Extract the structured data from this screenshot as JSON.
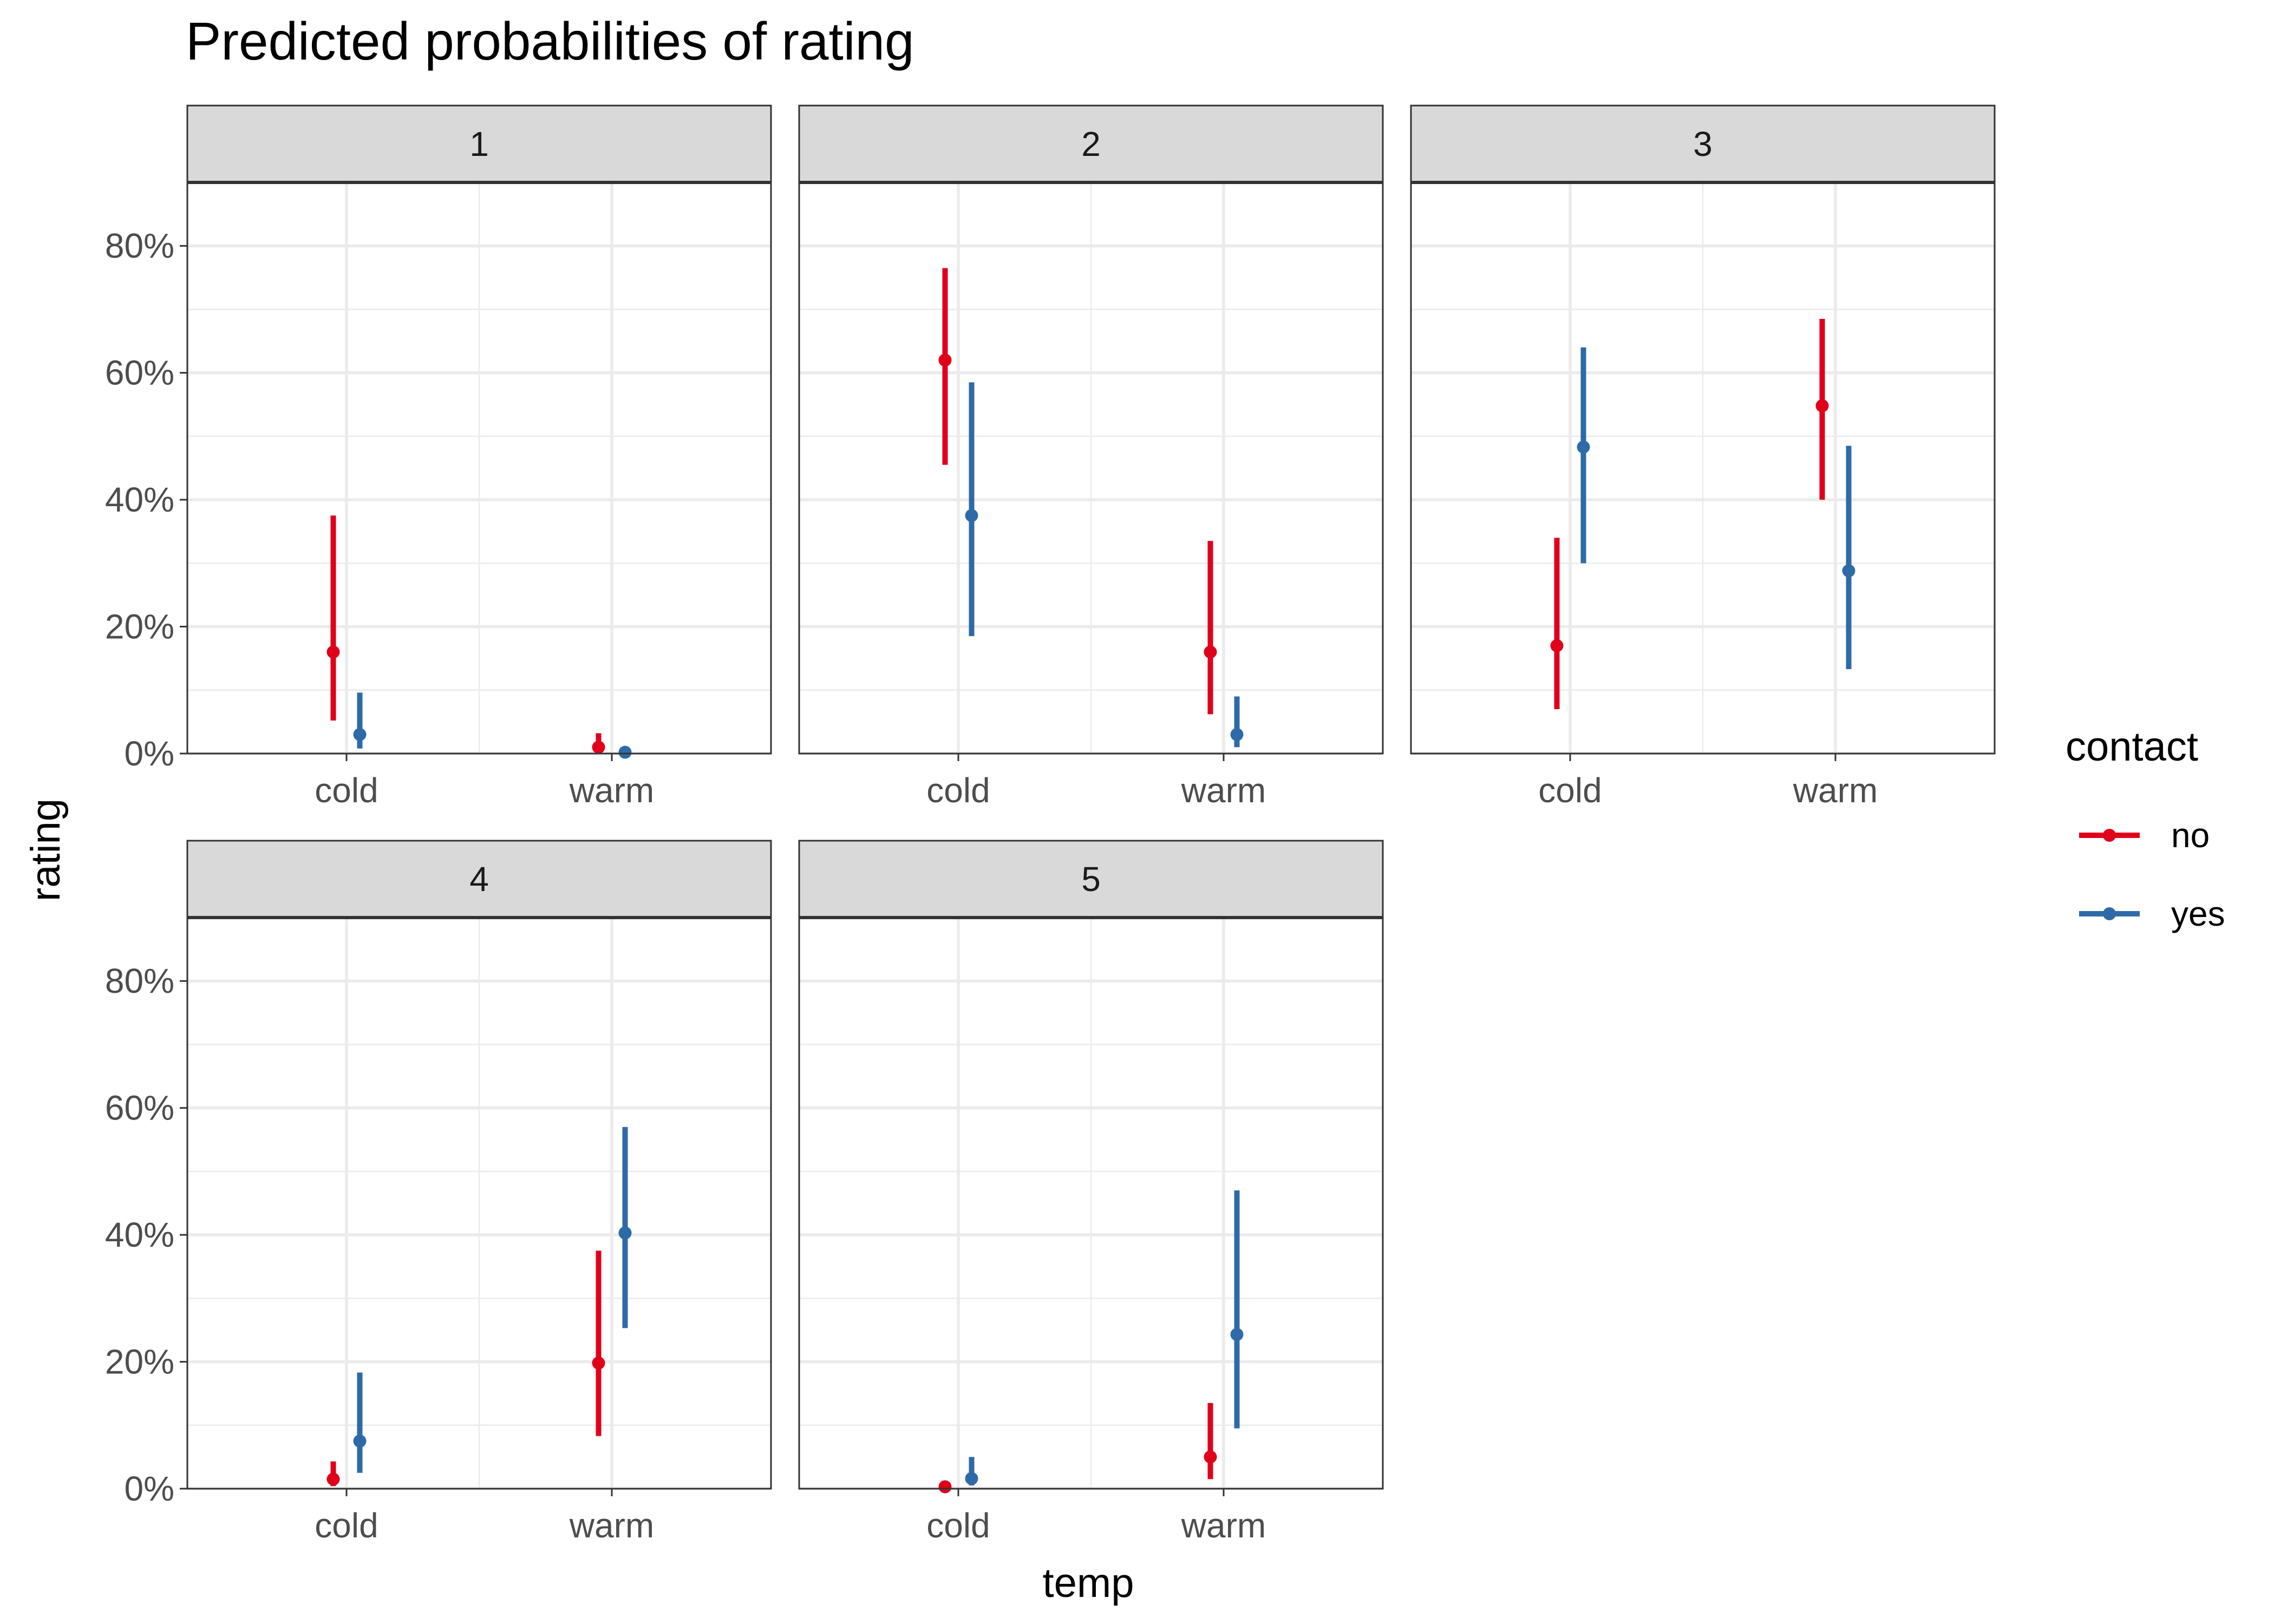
{
  "chart_data": {
    "type": "pointrange",
    "title": "Predicted probabilities of rating",
    "xlabel": "temp",
    "ylabel": "rating",
    "categories": [
      "cold",
      "warm"
    ],
    "ylim": [
      0,
      0.9
    ],
    "yticks": [
      0,
      0.2,
      0.4,
      0.6,
      0.8
    ],
    "ytick_labels": [
      "0%",
      "20%",
      "40%",
      "60%",
      "80%"
    ],
    "grid": true,
    "legend": {
      "title": "contact",
      "position": "right",
      "entries": [
        {
          "label": "no",
          "color": "#e0001a"
        },
        {
          "label": "yes",
          "color": "#2e6aa8"
        }
      ]
    },
    "facets": [
      {
        "label": "1",
        "series": [
          {
            "contact": "no",
            "points": [
              {
                "x": "cold",
                "y": 0.16,
                "low": 0.052,
                "high": 0.375
              },
              {
                "x": "warm",
                "y": 0.01,
                "low": 0.002,
                "high": 0.032
              }
            ]
          },
          {
            "contact": "yes",
            "points": [
              {
                "x": "cold",
                "y": 0.03,
                "low": 0.008,
                "high": 0.096
              },
              {
                "x": "warm",
                "y": 0.002,
                "low": 0.0,
                "high": 0.008
              }
            ]
          }
        ]
      },
      {
        "label": "2",
        "series": [
          {
            "contact": "no",
            "points": [
              {
                "x": "cold",
                "y": 0.62,
                "low": 0.455,
                "high": 0.765
              },
              {
                "x": "warm",
                "y": 0.16,
                "low": 0.062,
                "high": 0.335
              }
            ]
          },
          {
            "contact": "yes",
            "points": [
              {
                "x": "cold",
                "y": 0.375,
                "low": 0.185,
                "high": 0.585
              },
              {
                "x": "warm",
                "y": 0.03,
                "low": 0.01,
                "high": 0.09
              }
            ]
          }
        ]
      },
      {
        "label": "3",
        "series": [
          {
            "contact": "no",
            "points": [
              {
                "x": "cold",
                "y": 0.17,
                "low": 0.07,
                "high": 0.34
              },
              {
                "x": "warm",
                "y": 0.548,
                "low": 0.4,
                "high": 0.685
              }
            ]
          },
          {
            "contact": "yes",
            "points": [
              {
                "x": "cold",
                "y": 0.483,
                "low": 0.3,
                "high": 0.64
              },
              {
                "x": "warm",
                "y": 0.288,
                "low": 0.133,
                "high": 0.485
              }
            ]
          }
        ]
      },
      {
        "label": "4",
        "series": [
          {
            "contact": "no",
            "points": [
              {
                "x": "cold",
                "y": 0.015,
                "low": 0.004,
                "high": 0.043
              },
              {
                "x": "warm",
                "y": 0.198,
                "low": 0.083,
                "high": 0.375
              }
            ]
          },
          {
            "contact": "yes",
            "points": [
              {
                "x": "cold",
                "y": 0.075,
                "low": 0.025,
                "high": 0.183
              },
              {
                "x": "warm",
                "y": 0.403,
                "low": 0.253,
                "high": 0.57
              }
            ]
          }
        ]
      },
      {
        "label": "5",
        "series": [
          {
            "contact": "no",
            "points": [
              {
                "x": "cold",
                "y": 0.003,
                "low": 0.001,
                "high": 0.009
              },
              {
                "x": "warm",
                "y": 0.05,
                "low": 0.015,
                "high": 0.135
              }
            ]
          },
          {
            "contact": "yes",
            "points": [
              {
                "x": "cold",
                "y": 0.016,
                "low": 0.005,
                "high": 0.05
              },
              {
                "x": "warm",
                "y": 0.243,
                "low": 0.095,
                "high": 0.47
              }
            ]
          }
        ]
      }
    ]
  }
}
